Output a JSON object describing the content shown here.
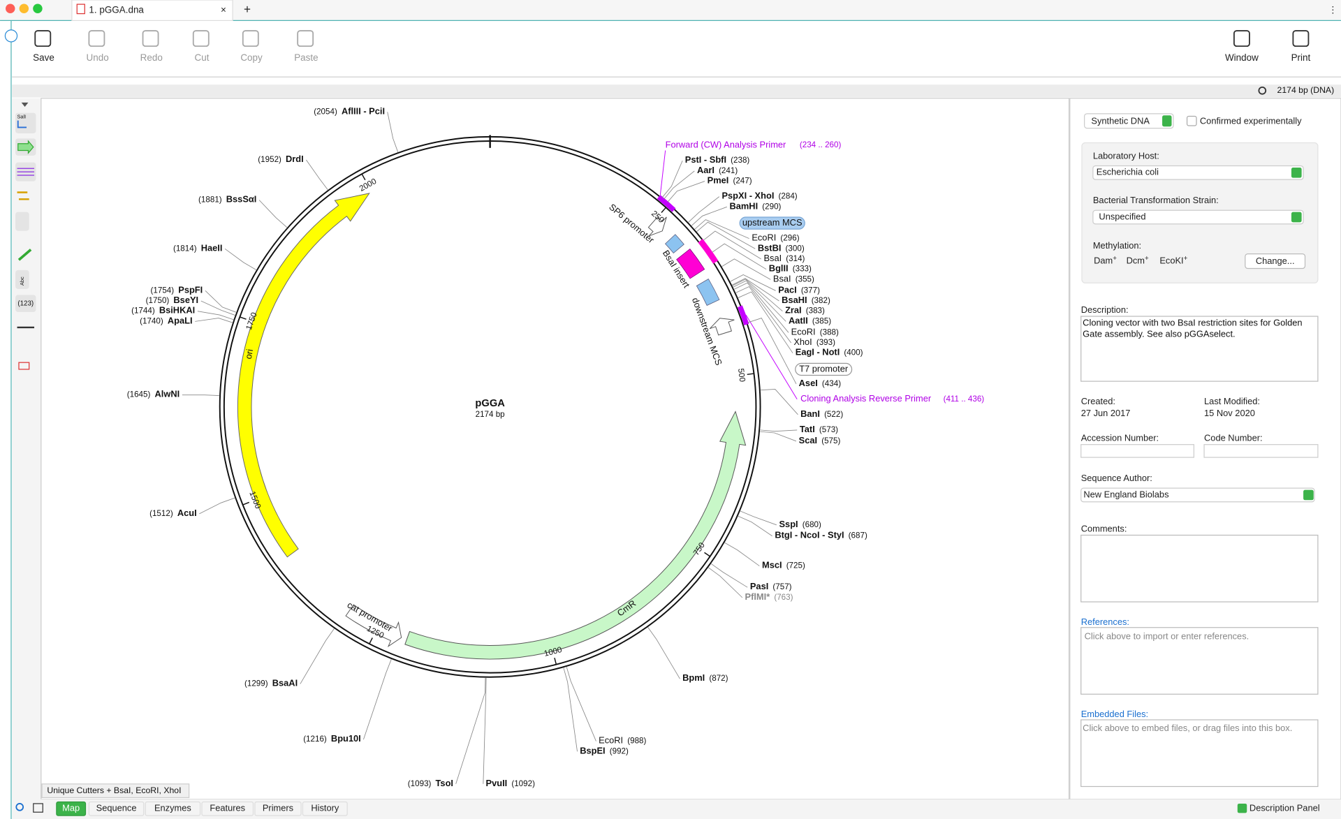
{
  "window": {
    "tab_title": "1. pGGA.dna",
    "new_tab": "+",
    "status": "2174 bp  (DNA)"
  },
  "toolbar": {
    "left": [
      "Save",
      "Undo",
      "Redo",
      "Cut",
      "Copy",
      "Paste"
    ],
    "right": [
      "Window",
      "Print"
    ]
  },
  "side_tools": [
    "SalI",
    "Abc",
    "(123)"
  ],
  "map": {
    "name": "pGGA",
    "length": {
      "value": 2174,
      "label": "2174 bp"
    },
    "ticks": [
      250,
      500,
      750,
      1000,
      1250,
      1500,
      1750,
      2000
    ],
    "sites": [
      {
        "name": "PstI - SbfI",
        "position": {
          "value": 238,
          "label": "(238)"
        }
      },
      {
        "name": "AarI",
        "position": {
          "value": 241,
          "label": "(241)"
        }
      },
      {
        "name": "PmeI",
        "position": {
          "value": 247,
          "label": "(247)"
        }
      },
      {
        "name": "PspXI - XhoI",
        "position": {
          "value": 284,
          "label": "(284)"
        }
      },
      {
        "name": "BamHI",
        "position": {
          "value": 290,
          "label": "(290)"
        }
      },
      {
        "name": "EcoRI",
        "position": {
          "value": 296,
          "label": "(296)"
        }
      },
      {
        "name": "BstBI",
        "position": {
          "value": 300,
          "label": "(300)"
        }
      },
      {
        "name": "BsaI",
        "position": {
          "value": 314,
          "label": "(314)"
        }
      },
      {
        "name": "BglII",
        "position": {
          "value": 333,
          "label": "(333)"
        }
      },
      {
        "name": "BsaI",
        "position": {
          "value": 355,
          "label": "(355)"
        }
      },
      {
        "name": "PacI",
        "position": {
          "value": 377,
          "label": "(377)"
        }
      },
      {
        "name": "BsaHI",
        "position": {
          "value": 382,
          "label": "(382)"
        }
      },
      {
        "name": "ZraI",
        "position": {
          "value": 383,
          "label": "(383)"
        }
      },
      {
        "name": "AatII",
        "position": {
          "value": 385,
          "label": "(385)"
        }
      },
      {
        "name": "EcoRI",
        "position": {
          "value": 388,
          "label": "(388)"
        }
      },
      {
        "name": "XhoI",
        "position": {
          "value": 393,
          "label": "(393)"
        }
      },
      {
        "name": "EagI - NotI",
        "position": {
          "value": 400,
          "label": "(400)"
        }
      },
      {
        "name": "AseI",
        "position": {
          "value": 434,
          "label": "(434)"
        }
      },
      {
        "name": "BanI",
        "position": {
          "value": 522,
          "label": "(522)"
        }
      },
      {
        "name": "TatI",
        "position": {
          "value": 573,
          "label": "(573)"
        }
      },
      {
        "name": "ScaI",
        "position": {
          "value": 575,
          "label": "(575)"
        }
      },
      {
        "name": "SspI",
        "position": {
          "value": 680,
          "label": "(680)"
        }
      },
      {
        "name": "BtgI - NcoI - StyI",
        "position": {
          "value": 687,
          "label": "(687)"
        }
      },
      {
        "name": "MscI",
        "position": {
          "value": 725,
          "label": "(725)"
        }
      },
      {
        "name": "PasI",
        "position": {
          "value": 757,
          "label": "(757)"
        }
      },
      {
        "name": "PflMI*",
        "position": {
          "value": 763,
          "label": "(763)"
        }
      },
      {
        "name": "BpmI",
        "position": {
          "value": 872,
          "label": "(872)"
        }
      },
      {
        "name": "EcoRI",
        "position": {
          "value": 988,
          "label": "(988)"
        }
      },
      {
        "name": "BspEI",
        "position": {
          "value": 992,
          "label": "(992)"
        }
      },
      {
        "name": "PvuII",
        "position": {
          "value": 1092,
          "label": "(1092)"
        }
      },
      {
        "name": "TsoI",
        "position": {
          "value": 1093,
          "label": "(1093)"
        }
      },
      {
        "name": "Bpu10I",
        "position": {
          "value": 1216,
          "label": "(1216)"
        }
      },
      {
        "name": "BsaAI",
        "position": {
          "value": 1299,
          "label": "(1299)"
        }
      },
      {
        "name": "AcuI",
        "position": {
          "value": 1512,
          "label": "(1512)"
        }
      },
      {
        "name": "AlwNI",
        "position": {
          "value": 1645,
          "label": "(1645)"
        }
      },
      {
        "name": "ApaLI",
        "position": {
          "value": 1740,
          "label": "(1740)"
        }
      },
      {
        "name": "BsiHKAI",
        "position": {
          "value": 1744,
          "label": "(1744)"
        }
      },
      {
        "name": "BseYI",
        "position": {
          "value": 1750,
          "label": "(1750)"
        }
      },
      {
        "name": "PspFI",
        "position": {
          "value": 1754,
          "label": "(1754)"
        }
      },
      {
        "name": "HaeII",
        "position": {
          "value": 1814,
          "label": "(1814)"
        }
      },
      {
        "name": "BssSαI",
        "position": {
          "value": 1881,
          "label": "(1881)"
        }
      },
      {
        "name": "DrdI",
        "position": {
          "value": 1952,
          "label": "(1952)"
        }
      },
      {
        "name": "AflIII - PciI",
        "position": {
          "value": 2054,
          "label": "(2054)"
        }
      }
    ],
    "features": [
      "ori",
      "CmR",
      "cat promoter",
      "SP6 promoter",
      "BsaI insert",
      "downstream MCS",
      "upstream MCS",
      "T7 promoter"
    ],
    "primers": [
      {
        "name": "Forward (CW) Analysis Primer",
        "range": "(234 .. 260)"
      },
      {
        "name": "Cloning Analysis Reverse Primer",
        "range": "(411 .. 436)"
      }
    ],
    "enzyme_set": "Unique Cutters + BsaI, EcoRI, XhoI"
  },
  "panel": {
    "molecule_type": "Synthetic DNA",
    "confirmed": "Confirmed experimentally",
    "host_label": "Laboratory Host:",
    "host": "Escherichia coli",
    "strain_label": "Bacterial Transformation Strain:",
    "strain": "Unspecified",
    "methylation_label": "Methylation:",
    "methylation": [
      {
        "name": "Dam",
        "sup": "+"
      },
      {
        "name": "Dcm",
        "sup": "+"
      },
      {
        "name": "EcoKI",
        "sup": "+"
      }
    ],
    "change": "Change...",
    "description_label": "Description:",
    "description": "Cloning vector with two BsaI restriction sites for Golden Gate assembly. See also pGGAselect.",
    "created_label": "Created:",
    "created": "27 Jun 2017",
    "modified_label": "Last Modified:",
    "modified": "15 Nov 2020",
    "accession_label": "Accession Number:",
    "code_label": "Code Number:",
    "author_label": "Sequence Author:",
    "author": "New England Biolabs",
    "comments_label": "Comments:",
    "references_label": "References:",
    "references_placeholder": "Click above to import or enter references.",
    "files_label": "Embedded Files:",
    "files_placeholder": "Click above to embed files, or drag files into this box."
  },
  "view_tabs": [
    "Map",
    "Sequence",
    "Enzymes",
    "Features",
    "Primers",
    "History"
  ],
  "description_panel": "Description Panel"
}
